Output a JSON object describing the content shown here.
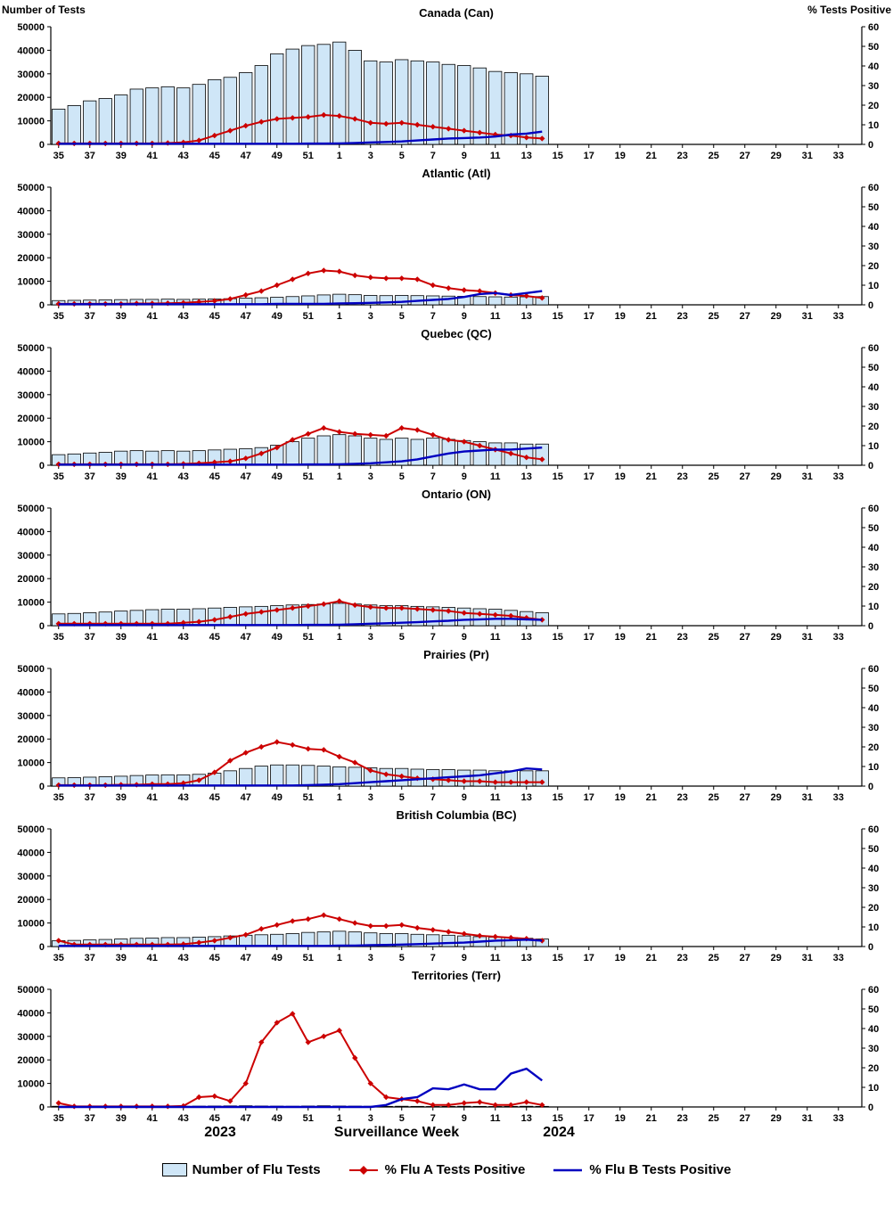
{
  "header": {
    "left_axis_title": "Number of Tests",
    "right_axis_title": "% Tests Positive"
  },
  "footer": {
    "year_left": "2023",
    "xlabel": "Surveillance Week",
    "year_right": "2024"
  },
  "legend": {
    "items": [
      {
        "key": "tests",
        "label": "Number of Flu Tests",
        "swatch": "bar"
      },
      {
        "key": "flu_a",
        "label": "% Flu A Tests Positive",
        "swatch": "line-diamond"
      },
      {
        "key": "flu_b",
        "label": "% Flu B Tests Positive",
        "swatch": "line"
      }
    ]
  },
  "colors": {
    "bar_fill": "#CFE6F7",
    "bar_stroke": "#000000",
    "flu_a": "#CC0000",
    "flu_b": "#0000C0",
    "text": "#000000",
    "axis": "#000000"
  },
  "chart_data": {
    "type": "combo-bar-line",
    "x_axis": {
      "weeks": [
        "35",
        "36",
        "37",
        "38",
        "39",
        "40",
        "41",
        "42",
        "43",
        "44",
        "45",
        "46",
        "47",
        "48",
        "49",
        "50",
        "51",
        "52",
        "1",
        "2",
        "3",
        "4",
        "5",
        "6",
        "7",
        "8",
        "9",
        "10",
        "11",
        "12",
        "13",
        "14",
        "15",
        "16",
        "17",
        "18",
        "19",
        "20",
        "21",
        "22",
        "23",
        "24",
        "25",
        "26",
        "27",
        "28",
        "29",
        "30",
        "31",
        "32",
        "33",
        "34"
      ],
      "tick_labels": [
        "35",
        "37",
        "39",
        "41",
        "43",
        "45",
        "47",
        "49",
        "51",
        "1",
        "3",
        "5",
        "7",
        "9",
        "11",
        "13",
        "15",
        "17",
        "19",
        "21",
        "23",
        "25",
        "27",
        "29",
        "31",
        "33"
      ]
    },
    "left_axis": {
      "title": "Number of Tests",
      "min": 0,
      "max": 50000,
      "step": 10000
    },
    "right_axis": {
      "title": "% Tests Positive",
      "min": 0,
      "max": 60,
      "step": 10
    },
    "series_weeks": [
      "35",
      "36",
      "37",
      "38",
      "39",
      "40",
      "41",
      "42",
      "43",
      "44",
      "45",
      "46",
      "47",
      "48",
      "49",
      "50",
      "51",
      "52",
      "1",
      "2",
      "3",
      "4",
      "5",
      "6",
      "7",
      "8",
      "9",
      "10",
      "11",
      "12",
      "13",
      "14"
    ],
    "panels": [
      {
        "id": "canada",
        "title": "Canada (Can)",
        "tests": [
          15000,
          16500,
          18500,
          19500,
          21000,
          23500,
          24000,
          24500,
          24000,
          25500,
          27500,
          28500,
          30500,
          33500,
          38500,
          40500,
          42000,
          42500,
          43500,
          40000,
          35500,
          35000,
          36000,
          35500,
          35000,
          34000,
          33500,
          32500,
          31000,
          30500,
          30000,
          29000
        ],
        "flu_a_pct": [
          0.5,
          0.5,
          0.5,
          0.5,
          0.5,
          0.5,
          0.5,
          0.7,
          1,
          2,
          4.5,
          7,
          9.5,
          11.5,
          13,
          13.5,
          14,
          15,
          14.5,
          13,
          11,
          10.5,
          11,
          10,
          9,
          8,
          7,
          6,
          5,
          4.5,
          3.5,
          3
        ],
        "flu_b_pct": [
          0.3,
          0.3,
          0.3,
          0.3,
          0.3,
          0.3,
          0.3,
          0.3,
          0.3,
          0.3,
          0.3,
          0.3,
          0.3,
          0.3,
          0.3,
          0.3,
          0.4,
          0.4,
          0.5,
          0.7,
          1,
          1.2,
          1.5,
          2,
          2.5,
          3,
          3.2,
          3.5,
          4,
          5,
          5.5,
          6.5
        ]
      },
      {
        "id": "atlantic",
        "title": "Atlantic (Atl)",
        "tests": [
          1800,
          1900,
          2000,
          2100,
          2200,
          2300,
          2300,
          2400,
          2300,
          2400,
          2500,
          2600,
          2800,
          3000,
          3200,
          3500,
          3800,
          4200,
          4500,
          4300,
          4000,
          3900,
          4000,
          3900,
          3800,
          3700,
          3600,
          3500,
          3400,
          3300,
          3400,
          3500
        ],
        "flu_a_pct": [
          0.5,
          0.5,
          0.5,
          0.5,
          0.5,
          0.7,
          0.7,
          0.8,
          1,
          1.5,
          2,
          3,
          5,
          7,
          10,
          13,
          16,
          17.5,
          17,
          15,
          14,
          13.5,
          13.5,
          13,
          10,
          8.5,
          7.5,
          7,
          6,
          5,
          4.5,
          3.5
        ],
        "flu_b_pct": [
          0.3,
          0.3,
          0.3,
          0.3,
          0.3,
          0.3,
          0.3,
          0.3,
          0.3,
          0.3,
          0.3,
          0.3,
          0.3,
          0.3,
          0.5,
          0.5,
          0.5,
          0.5,
          0.7,
          0.8,
          1,
          1.2,
          1.5,
          2,
          2.5,
          3,
          4,
          5.5,
          6,
          5,
          6,
          7
        ]
      },
      {
        "id": "quebec",
        "title": "Quebec (QC)",
        "tests": [
          4500,
          4800,
          5200,
          5500,
          6000,
          6200,
          6000,
          6200,
          6000,
          6200,
          6500,
          6800,
          7000,
          7500,
          8500,
          10000,
          11500,
          12500,
          13000,
          12500,
          11500,
          11000,
          11500,
          11000,
          11500,
          11000,
          10500,
          10000,
          9500,
          9500,
          9000,
          9000
        ],
        "flu_a_pct": [
          0.5,
          0.5,
          0.5,
          0.5,
          0.5,
          0.5,
          0.5,
          0.5,
          0.7,
          1,
          1.5,
          2,
          3.5,
          6,
          9,
          13,
          16,
          19,
          17,
          16,
          15.5,
          15,
          19,
          18,
          15.5,
          13,
          12,
          10,
          8,
          6,
          4,
          3
        ],
        "flu_b_pct": [
          0.3,
          0.3,
          0.3,
          0.3,
          0.3,
          0.3,
          0.3,
          0.3,
          0.3,
          0.3,
          0.3,
          0.3,
          0.3,
          0.3,
          0.3,
          0.3,
          0.4,
          0.4,
          0.5,
          0.7,
          1,
          1.5,
          2,
          3,
          4.5,
          6,
          7,
          7.5,
          8,
          8,
          8.5,
          9
        ]
      },
      {
        "id": "ontario",
        "title": "Ontario (ON)",
        "tests": [
          5000,
          5200,
          5500,
          5800,
          6200,
          6500,
          6800,
          7000,
          7000,
          7200,
          7500,
          7800,
          8000,
          8200,
          8500,
          8800,
          9000,
          9200,
          9500,
          9200,
          8800,
          8500,
          8500,
          8200,
          8000,
          7800,
          7500,
          7200,
          7000,
          6500,
          6000,
          5500
        ],
        "flu_a_pct": [
          1,
          1,
          1,
          1,
          1,
          1,
          1,
          1,
          1.5,
          2,
          3,
          4.5,
          6,
          7,
          8,
          9,
          10,
          11,
          12.5,
          10.5,
          9.5,
          9,
          9,
          8.5,
          8,
          7.5,
          6.5,
          6,
          5.5,
          5,
          4,
          3
        ],
        "flu_b_pct": [
          0.3,
          0.3,
          0.3,
          0.3,
          0.3,
          0.3,
          0.3,
          0.3,
          0.3,
          0.3,
          0.3,
          0.3,
          0.3,
          0.3,
          0.3,
          0.3,
          0.4,
          0.4,
          0.5,
          0.7,
          1,
          1.2,
          1.5,
          1.8,
          2.2,
          2.5,
          3,
          3.2,
          3.5,
          3.5,
          3.2,
          3
        ]
      },
      {
        "id": "prairies",
        "title": "Prairies (Pr)",
        "tests": [
          3500,
          3600,
          3800,
          4000,
          4200,
          4500,
          4700,
          4800,
          4800,
          5000,
          5500,
          6500,
          7500,
          8500,
          9000,
          9000,
          8800,
          8500,
          8200,
          8000,
          7800,
          7500,
          7500,
          7200,
          7000,
          7000,
          6800,
          6800,
          6500,
          6500,
          6500,
          6500
        ],
        "flu_a_pct": [
          0.5,
          0.5,
          0.5,
          0.5,
          0.7,
          0.7,
          1,
          1,
          1.5,
          3,
          7,
          13,
          17,
          20,
          22.5,
          21,
          19,
          18.5,
          15,
          12,
          8,
          6,
          5,
          4,
          3.5,
          3,
          2.5,
          2.5,
          2,
          2,
          2,
          2
        ],
        "flu_b_pct": [
          0.3,
          0.3,
          0.3,
          0.3,
          0.3,
          0.3,
          0.3,
          0.3,
          0.3,
          0.3,
          0.3,
          0.3,
          0.3,
          0.3,
          0.3,
          0.3,
          0.5,
          0.7,
          1,
          1.5,
          2,
          2.5,
          3,
          3.5,
          4,
          4.5,
          5,
          5.5,
          6.5,
          7.5,
          9,
          8.5
        ]
      },
      {
        "id": "bc",
        "title": "British Columbia (BC)",
        "tests": [
          2500,
          2600,
          2800,
          3000,
          3200,
          3500,
          3600,
          3800,
          3800,
          4000,
          4200,
          4500,
          4800,
          5000,
          5200,
          5500,
          6000,
          6200,
          6500,
          6200,
          5800,
          5500,
          5500,
          5200,
          5000,
          4800,
          4500,
          4200,
          4000,
          3800,
          3500,
          3200
        ],
        "flu_a_pct": [
          3,
          1,
          1,
          1,
          1,
          1,
          1,
          1,
          1.2,
          2,
          3,
          4.5,
          6,
          9,
          11,
          13,
          14,
          16,
          14,
          12,
          10.5,
          10.5,
          11,
          9.5,
          8.5,
          7.5,
          6.5,
          5.5,
          5,
          4.5,
          4,
          3
        ],
        "flu_b_pct": [
          0.3,
          0.3,
          0.3,
          0.3,
          0.3,
          0.3,
          0.3,
          0.3,
          0.3,
          0.3,
          0.3,
          0.3,
          0.3,
          0.3,
          0.3,
          0.3,
          0.3,
          0.3,
          0.5,
          0.5,
          0.7,
          0.8,
          1,
          1.2,
          1.5,
          1.8,
          2,
          2.5,
          3,
          3.2,
          3.5,
          3
        ]
      },
      {
        "id": "territories",
        "title": "Territories (Terr)",
        "tests": [
          300,
          250,
          200,
          250,
          300,
          250,
          200,
          250,
          300,
          350,
          400,
          450,
          500,
          400,
          350,
          300,
          400,
          500,
          400,
          350,
          300,
          250,
          300,
          250,
          200,
          250,
          300,
          250,
          200,
          250,
          300,
          250
        ],
        "flu_a_pct": [
          2,
          0.3,
          0.3,
          0.3,
          0.3,
          0.3,
          0.3,
          0.3,
          0.5,
          5,
          5.5,
          3,
          12,
          33,
          43,
          47.5,
          33,
          36,
          39,
          25,
          12,
          5,
          4,
          3,
          1,
          1,
          2,
          2.5,
          1,
          1,
          2.5,
          1
        ],
        "flu_b_pct": [
          0,
          0,
          0,
          0,
          0,
          0,
          0,
          0,
          0,
          0,
          0,
          0,
          0,
          0,
          0,
          0,
          0,
          0,
          0,
          0,
          0,
          1,
          4,
          5,
          9.5,
          9,
          11.5,
          9,
          9,
          17,
          19.5,
          13.5
        ]
      }
    ]
  }
}
